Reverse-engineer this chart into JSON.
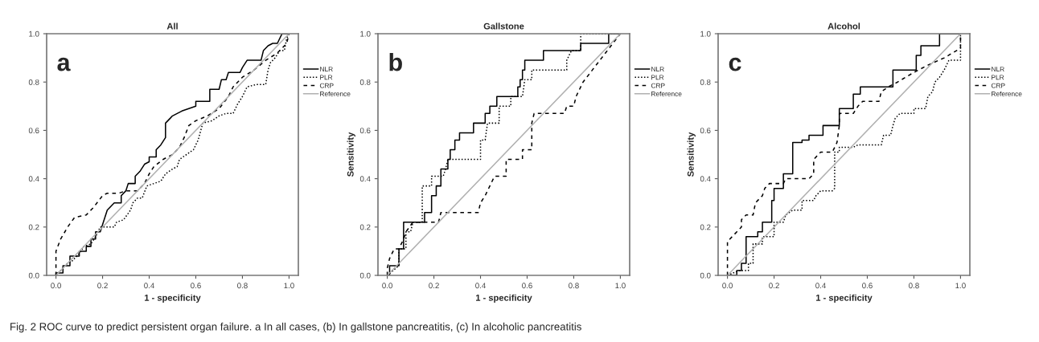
{
  "chart_data": [
    {
      "type": "line",
      "title": "All",
      "xlabel": "1 - specificity",
      "annotations": [
        "a",
        "Fig. 2 ROC curve to predict persistent organ failure. a In all cases, (b) In gallstone pancreatitis, (c) In alcoholic pancreatitis"
      ],
      "xlim": [
        -0.04,
        1.04
      ],
      "ylim": [
        0,
        1
      ],
      "xticks": [
        {
          "value": 0,
          "label": "0.0"
        },
        {
          "value": 0.2,
          "label": "0.2"
        },
        {
          "value": 0.4,
          "label": "0.4"
        },
        {
          "value": 0.6,
          "label": "0.6"
        },
        {
          "value": 0.8,
          "label": "0.8"
        },
        {
          "value": 1,
          "label": "1.0"
        }
      ],
      "yticks": [
        {
          "value": 0,
          "label": "0.0"
        },
        {
          "value": 0.2,
          "label": "0.2"
        },
        {
          "value": 0.4,
          "label": "0.4"
        },
        {
          "value": 0.6,
          "label": "0.6"
        },
        {
          "value": 0.8,
          "label": "0.8"
        },
        {
          "value": 1,
          "label": "1.0"
        }
      ],
      "grid": false,
      "legend": "right",
      "marker": "none",
      "series": [
        {
          "name": "NLR",
          "color": "#000000",
          "line_style": "solid",
          "x": [
            0,
            0,
            0.03,
            0.03,
            0.06,
            0.06,
            0.1,
            0.1,
            0.13,
            0.13,
            0.15,
            0.15,
            0.17,
            0.17,
            0.19,
            0.2,
            0.21,
            0.22,
            0.24,
            0.25,
            0.28,
            0.28,
            0.3,
            0.31,
            0.34,
            0.34,
            0.36,
            0.38,
            0.4,
            0.4,
            0.43,
            0.43,
            0.45,
            0.47,
            0.47,
            0.49,
            0.5,
            0.52,
            0.54,
            0.57,
            0.6,
            0.6,
            0.66,
            0.66,
            0.7,
            0.71,
            0.73,
            0.74,
            0.79,
            0.8,
            0.82,
            0.88,
            0.89,
            0.91,
            0.93,
            0.95,
            0.97,
            1.0
          ],
          "values": [
            0,
            0.01,
            0.01,
            0.04,
            0.04,
            0.08,
            0.08,
            0.1,
            0.1,
            0.12,
            0.12,
            0.15,
            0.15,
            0.18,
            0.18,
            0.21,
            0.24,
            0.27,
            0.29,
            0.3,
            0.3,
            0.33,
            0.35,
            0.38,
            0.38,
            0.41,
            0.43,
            0.46,
            0.47,
            0.49,
            0.49,
            0.52,
            0.54,
            0.57,
            0.63,
            0.65,
            0.66,
            0.67,
            0.68,
            0.69,
            0.7,
            0.72,
            0.72,
            0.77,
            0.77,
            0.81,
            0.81,
            0.84,
            0.84,
            0.86,
            0.89,
            0.89,
            0.93,
            0.95,
            0.96,
            0.96,
            1.0,
            1.0
          ]
        },
        {
          "name": "PLR",
          "color": "#000000",
          "line_style": "dotted",
          "x": [
            0,
            0.02,
            0.05,
            0.07,
            0.1,
            0.12,
            0.15,
            0.17,
            0.19,
            0.25,
            0.26,
            0.29,
            0.32,
            0.33,
            0.35,
            0.37,
            0.39,
            0.42,
            0.45,
            0.47,
            0.5,
            0.52,
            0.53,
            0.56,
            0.59,
            0.61,
            0.63,
            0.67,
            0.7,
            0.73,
            0.76,
            0.78,
            0.8,
            0.82,
            0.86,
            0.9,
            0.91,
            0.92,
            0.94,
            0.96,
            0.98,
            0.99,
            1
          ],
          "values": [
            0,
            0.02,
            0.05,
            0.06,
            0.09,
            0.12,
            0.13,
            0.16,
            0.2,
            0.2,
            0.22,
            0.23,
            0.27,
            0.3,
            0.32,
            0.32,
            0.37,
            0.38,
            0.39,
            0.42,
            0.44,
            0.45,
            0.48,
            0.5,
            0.52,
            0.56,
            0.63,
            0.64,
            0.66,
            0.67,
            0.67,
            0.71,
            0.74,
            0.78,
            0.79,
            0.79,
            0.85,
            0.88,
            0.9,
            0.93,
            0.93,
            0.98,
            1
          ]
        },
        {
          "name": "CRP",
          "color": "#000000",
          "line_style": "dashed",
          "x": [
            0,
            0,
            0.02,
            0.05,
            0.08,
            0.13,
            0.16,
            0.2,
            0.22,
            0.27,
            0.3,
            0.35,
            0.38,
            0.4,
            0.42,
            0.46,
            0.5,
            0.53,
            0.55,
            0.57,
            0.6,
            0.65,
            0.7,
            0.74,
            0.76,
            0.8,
            0.85,
            0.9,
            0.95,
            0.99,
            1
          ],
          "values": [
            0,
            0.1,
            0.15,
            0.2,
            0.24,
            0.25,
            0.28,
            0.33,
            0.34,
            0.34,
            0.35,
            0.35,
            0.38,
            0.42,
            0.45,
            0.48,
            0.5,
            0.53,
            0.57,
            0.62,
            0.64,
            0.66,
            0.69,
            0.74,
            0.78,
            0.82,
            0.85,
            0.89,
            0.92,
            0.96,
            1
          ]
        },
        {
          "name": "Reference",
          "color": "#b0b0b0",
          "line_style": "solid",
          "x": [
            0,
            1
          ],
          "values": [
            0,
            1
          ]
        }
      ]
    },
    {
      "type": "line",
      "title": "Gallstone",
      "xlabel": "1 - specificity",
      "ylabel": "Sensitivity",
      "annotations": [
        "b"
      ],
      "xlim": [
        -0.04,
        1.04
      ],
      "ylim": [
        0,
        1
      ],
      "xticks": [
        {
          "value": 0,
          "label": "0.0"
        },
        {
          "value": 0.2,
          "label": "0.2"
        },
        {
          "value": 0.4,
          "label": "0.4"
        },
        {
          "value": 0.6,
          "label": "0.6"
        },
        {
          "value": 0.8,
          "label": "0.8"
        },
        {
          "value": 1,
          "label": "1.0"
        }
      ],
      "yticks": [
        {
          "value": 0,
          "label": "0.0"
        },
        {
          "value": 0.2,
          "label": "0.2"
        },
        {
          "value": 0.4,
          "label": "0.4"
        },
        {
          "value": 0.6,
          "label": "0.6"
        },
        {
          "value": 0.8,
          "label": "0.8"
        },
        {
          "value": 1,
          "label": "1.0"
        }
      ],
      "grid": false,
      "legend": "right",
      "marker": "none",
      "series": [
        {
          "name": "NLR",
          "color": "#000000",
          "line_style": "solid",
          "x": [
            0,
            0.01,
            0.01,
            0.05,
            0.05,
            0.07,
            0.07,
            0.16,
            0.16,
            0.19,
            0.19,
            0.21,
            0.21,
            0.23,
            0.23,
            0.26,
            0.26,
            0.27,
            0.27,
            0.29,
            0.29,
            0.31,
            0.31,
            0.37,
            0.37,
            0.42,
            0.42,
            0.44,
            0.44,
            0.47,
            0.47,
            0.56,
            0.56,
            0.57,
            0.57,
            0.58,
            0.58,
            0.59,
            0.59,
            0.67,
            0.67,
            0.83,
            0.83,
            0.95,
            0.95,
            1
          ],
          "values": [
            0,
            0,
            0.04,
            0.04,
            0.11,
            0.11,
            0.22,
            0.22,
            0.26,
            0.26,
            0.33,
            0.33,
            0.37,
            0.37,
            0.44,
            0.44,
            0.48,
            0.48,
            0.52,
            0.52,
            0.56,
            0.56,
            0.59,
            0.59,
            0.63,
            0.63,
            0.67,
            0.67,
            0.7,
            0.7,
            0.74,
            0.74,
            0.78,
            0.78,
            0.81,
            0.81,
            0.85,
            0.85,
            0.89,
            0.89,
            0.93,
            0.93,
            0.96,
            0.96,
            1.0,
            1
          ]
        },
        {
          "name": "PLR",
          "color": "#000000",
          "line_style": "dotted",
          "x": [
            0,
            0.05,
            0.05,
            0.08,
            0.08,
            0.1,
            0.11,
            0.15,
            0.15,
            0.15,
            0.19,
            0.19,
            0.24,
            0.25,
            0.26,
            0.4,
            0.4,
            0.42,
            0.43,
            0.48,
            0.48,
            0.53,
            0.53,
            0.58,
            0.59,
            0.62,
            0.62,
            0.77,
            0.77,
            0.79,
            0.83,
            0.83,
            1
          ],
          "values": [
            0,
            0.04,
            0.11,
            0.11,
            0.18,
            0.18,
            0.22,
            0.22,
            0.26,
            0.37,
            0.37,
            0.41,
            0.41,
            0.44,
            0.48,
            0.48,
            0.56,
            0.56,
            0.63,
            0.63,
            0.7,
            0.7,
            0.74,
            0.74,
            0.81,
            0.81,
            0.85,
            0.85,
            0.89,
            0.93,
            0.93,
            1.0,
            1
          ]
        },
        {
          "name": "CRP",
          "color": "#000000",
          "line_style": "dashed",
          "x": [
            0,
            0,
            0.01,
            0.03,
            0.05,
            0.07,
            0.08,
            0.11,
            0.22,
            0.23,
            0.39,
            0.4,
            0.42,
            0.46,
            0.51,
            0.51,
            0.58,
            0.58,
            0.62,
            0.62,
            0.63,
            0.76,
            0.77,
            0.8,
            0.81,
            0.84,
            0.88,
            0.92,
            0.96,
            1
          ],
          "values": [
            0,
            0.03,
            0.07,
            0.11,
            0.11,
            0.15,
            0.18,
            0.22,
            0.22,
            0.26,
            0.26,
            0.3,
            0.33,
            0.41,
            0.41,
            0.48,
            0.48,
            0.52,
            0.52,
            0.63,
            0.67,
            0.67,
            0.7,
            0.7,
            0.74,
            0.8,
            0.85,
            0.9,
            0.95,
            1
          ]
        },
        {
          "name": "Reference",
          "color": "#b0b0b0",
          "line_style": "solid",
          "x": [
            0,
            1
          ],
          "values": [
            0,
            1
          ]
        }
      ]
    },
    {
      "type": "line",
      "title": "Alcohol",
      "xlabel": "1 - specificity",
      "ylabel": "Sensitivity",
      "annotations": [
        "c"
      ],
      "xlim": [
        -0.04,
        1.04
      ],
      "ylim": [
        0,
        1
      ],
      "xticks": [
        {
          "value": 0,
          "label": "0.0"
        },
        {
          "value": 0.2,
          "label": "0.2"
        },
        {
          "value": 0.4,
          "label": "0.4"
        },
        {
          "value": 0.6,
          "label": "0.6"
        },
        {
          "value": 0.8,
          "label": "0.8"
        },
        {
          "value": 1,
          "label": "1.0"
        }
      ],
      "yticks": [
        {
          "value": 0,
          "label": "0.0"
        },
        {
          "value": 0.2,
          "label": "0.2"
        },
        {
          "value": 0.4,
          "label": "0.4"
        },
        {
          "value": 0.6,
          "label": "0.6"
        },
        {
          "value": 0.8,
          "label": "0.8"
        },
        {
          "value": 1,
          "label": "1.0"
        }
      ],
      "grid": false,
      "legend": "right",
      "marker": "none",
      "series": [
        {
          "name": "NLR",
          "color": "#000000",
          "line_style": "solid",
          "x": [
            0,
            0.04,
            0.04,
            0.06,
            0.06,
            0.08,
            0.08,
            0.13,
            0.13,
            0.15,
            0.15,
            0.19,
            0.19,
            0.2,
            0.2,
            0.24,
            0.24,
            0.28,
            0.28,
            0.32,
            0.32,
            0.35,
            0.35,
            0.41,
            0.41,
            0.48,
            0.48,
            0.54,
            0.54,
            0.57,
            0.57,
            0.71,
            0.71,
            0.81,
            0.81,
            0.83,
            0.83,
            0.91,
            0.91,
            1
          ],
          "values": [
            0,
            0,
            0.02,
            0.02,
            0.05,
            0.05,
            0.16,
            0.16,
            0.18,
            0.18,
            0.22,
            0.22,
            0.31,
            0.31,
            0.36,
            0.36,
            0.42,
            0.42,
            0.55,
            0.55,
            0.56,
            0.56,
            0.58,
            0.58,
            0.62,
            0.62,
            0.69,
            0.69,
            0.75,
            0.75,
            0.78,
            0.78,
            0.85,
            0.85,
            0.91,
            0.91,
            0.95,
            0.95,
            1.0,
            1
          ]
        },
        {
          "name": "PLR",
          "color": "#000000",
          "line_style": "dotted",
          "x": [
            0,
            0.05,
            0.09,
            0.09,
            0.11,
            0.11,
            0.15,
            0.15,
            0.2,
            0.2,
            0.24,
            0.25,
            0.28,
            0.32,
            0.32,
            0.37,
            0.38,
            0.4,
            0.45,
            0.46,
            0.46,
            0.48,
            0.48,
            0.54,
            0.56,
            0.66,
            0.67,
            0.7,
            0.71,
            0.72,
            0.74,
            0.8,
            0.8,
            0.85,
            0.86,
            0.88,
            0.89,
            0.91,
            0.93,
            0.95,
            1,
            1
          ],
          "values": [
            0,
            0.02,
            0.02,
            0.05,
            0.05,
            0.13,
            0.13,
            0.16,
            0.16,
            0.22,
            0.22,
            0.25,
            0.27,
            0.27,
            0.31,
            0.31,
            0.33,
            0.35,
            0.35,
            0.36,
            0.51,
            0.51,
            0.53,
            0.53,
            0.54,
            0.54,
            0.58,
            0.58,
            0.62,
            0.65,
            0.67,
            0.67,
            0.69,
            0.69,
            0.74,
            0.76,
            0.8,
            0.82,
            0.85,
            0.89,
            0.89,
            1
          ]
        },
        {
          "name": "CRP",
          "color": "#000000",
          "line_style": "dashed",
          "x": [
            0,
            0,
            0.03,
            0.06,
            0.06,
            0.08,
            0.11,
            0.12,
            0.15,
            0.16,
            0.18,
            0.24,
            0.25,
            0.35,
            0.37,
            0.37,
            0.4,
            0.45,
            0.47,
            0.48,
            0.48,
            0.54,
            0.56,
            0.58,
            0.65,
            0.66,
            0.69,
            0.73,
            0.8,
            0.86,
            0.93,
            1,
            1
          ],
          "values": [
            0,
            0.14,
            0.17,
            0.2,
            0.23,
            0.25,
            0.25,
            0.3,
            0.33,
            0.36,
            0.38,
            0.38,
            0.4,
            0.4,
            0.42,
            0.48,
            0.51,
            0.51,
            0.55,
            0.62,
            0.67,
            0.67,
            0.7,
            0.72,
            0.72,
            0.76,
            0.78,
            0.8,
            0.84,
            0.87,
            0.9,
            0.94,
            1
          ]
        },
        {
          "name": "Reference",
          "color": "#b0b0b0",
          "line_style": "solid",
          "x": [
            0,
            1
          ],
          "values": [
            0,
            1
          ]
        }
      ]
    }
  ]
}
